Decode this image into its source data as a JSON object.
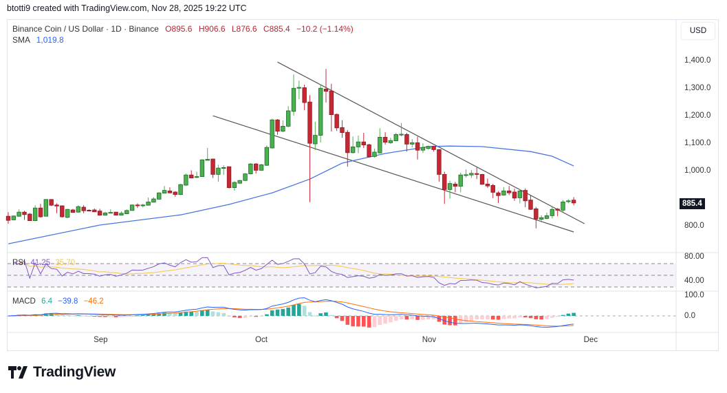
{
  "credit": "btotti9 created with TradingView.com, Nov 28, 2025 19:22 UTC",
  "legend": {
    "symbol": "Binance Coin / US Dollar · 1D · Binance",
    "open": "O895.6",
    "high": "H906.6",
    "low": "L876.6",
    "close": "C885.4",
    "change": "−10.2 (−1.14%)",
    "sma_label": "SMA",
    "sma_value": "1,019.8"
  },
  "currency_button": "USD",
  "price_axis": [
    "1,400.0",
    "1,300.0",
    "1,200.0",
    "1,100.0",
    "1,000.0",
    "800.0"
  ],
  "last_price": "885.4",
  "rsi": {
    "label": "RSI",
    "value": "41.25",
    "ma_value": "35.70",
    "axis": [
      "80.00",
      "40.00"
    ],
    "levels": [
      70,
      50,
      30
    ]
  },
  "macd": {
    "label": "MACD",
    "hist": "6.4",
    "macd": "−39.8",
    "signal": "−46.2",
    "axis": [
      "100.0",
      "0.0"
    ]
  },
  "time_axis": [
    "Sep",
    "Oct",
    "Nov",
    "Dec"
  ],
  "brand": "TradingView",
  "colors": {
    "up": "#4caf50",
    "up_border": "#1e6b2a",
    "down": "#c62833",
    "down_border": "#8e1a22",
    "sma": "#4a74e0",
    "rsi": "#7e57c2",
    "rsi_ma": "#f5c842",
    "macd": "#2962ff",
    "signal": "#ff6d00",
    "hist_up": "#26a69a",
    "hist_up_light": "#b2dfdb",
    "hist_dn": "#ff5252",
    "hist_dn_light": "#ffcdd2",
    "trendline": "#555555"
  },
  "chart_data": {
    "type": "candlestick",
    "interval": "1D",
    "date_range": [
      "2025-08-15",
      "2025-11-28"
    ],
    "ohlc": [
      [
        837,
        852,
        810,
        822
      ],
      [
        824,
        840,
        822,
        838
      ],
      [
        837,
        862,
        835,
        852
      ],
      [
        852,
        857,
        824,
        843
      ],
      [
        845,
        849,
        820,
        821
      ],
      [
        821,
        877,
        819,
        867
      ],
      [
        867,
        882,
        832,
        835
      ],
      [
        837,
        898,
        836,
        898
      ],
      [
        898,
        898,
        874,
        877
      ],
      [
        878,
        884,
        848,
        874
      ],
      [
        875,
        876,
        832,
        835
      ],
      [
        833,
        864,
        830,
        862
      ],
      [
        860,
        864,
        850,
        851
      ],
      [
        852,
        877,
        850,
        872
      ],
      [
        870,
        877,
        848,
        857
      ],
      [
        859,
        862,
        855,
        857
      ],
      [
        860,
        865,
        852,
        853
      ],
      [
        856,
        864,
        839,
        841
      ],
      [
        841,
        853,
        839,
        849
      ],
      [
        849,
        862,
        848,
        851
      ],
      [
        852,
        853,
        840,
        841
      ],
      [
        841,
        855,
        840,
        848
      ],
      [
        846,
        862,
        845,
        858
      ],
      [
        858,
        880,
        857,
        878
      ],
      [
        878,
        884,
        867,
        877
      ],
      [
        876,
        882,
        869,
        878
      ],
      [
        877,
        905,
        876,
        889
      ],
      [
        888,
        906,
        887,
        900
      ],
      [
        899,
        924,
        897,
        922
      ],
      [
        921,
        947,
        920,
        931
      ],
      [
        929,
        942,
        920,
        922
      ],
      [
        925,
        928,
        908,
        916
      ],
      [
        916,
        955,
        914,
        952
      ],
      [
        950,
        992,
        947,
        987
      ],
      [
        987,
        1004,
        975,
        976
      ],
      [
        978,
        999,
        975,
        981
      ],
      [
        981,
        1044,
        980,
        1042
      ],
      [
        1040,
        1085,
        1040,
        1044
      ],
      [
        1045,
        1046,
        976,
        989
      ],
      [
        989,
        1024,
        962,
        1012
      ],
      [
        1012,
        1022,
        987,
        1014
      ],
      [
        1017,
        1018,
        938,
        941
      ],
      [
        941,
        964,
        930,
        960
      ],
      [
        957,
        969,
        955,
        967
      ],
      [
        967,
        993,
        965,
        991
      ],
      [
        991,
        1030,
        989,
        1027
      ],
      [
        1027,
        1030,
        992,
        1004
      ],
      [
        1004,
        1027,
        1002,
        1024
      ],
      [
        1022,
        1094,
        1020,
        1087
      ],
      [
        1085,
        1191,
        1083,
        1187
      ],
      [
        1187,
        1190,
        1133,
        1146
      ],
      [
        1146,
        1185,
        1142,
        1164
      ],
      [
        1164,
        1237,
        1160,
        1220
      ],
      [
        1218,
        1352,
        1202,
        1302
      ],
      [
        1303,
        1330,
        1262,
        1305
      ],
      [
        1304,
        1315,
        1222,
        1250
      ],
      [
        1252,
        1277,
        888,
        1102
      ],
      [
        1100,
        1180,
        1077,
        1131
      ],
      [
        1131,
        1315,
        1105,
        1302
      ],
      [
        1299,
        1372,
        1250,
        1291
      ],
      [
        1292,
        1318,
        1145,
        1206
      ],
      [
        1207,
        1210,
        1147,
        1158
      ],
      [
        1159,
        1186,
        1122,
        1141
      ],
      [
        1142,
        1150,
        1017,
        1068
      ],
      [
        1068,
        1127,
        1065,
        1089
      ],
      [
        1089,
        1130,
        1066,
        1107
      ],
      [
        1107,
        1140,
        1085,
        1096
      ],
      [
        1097,
        1100,
        1050,
        1053
      ],
      [
        1054,
        1083,
        1050,
        1070
      ],
      [
        1067,
        1157,
        1065,
        1124
      ],
      [
        1124,
        1142,
        1097,
        1106
      ],
      [
        1104,
        1122,
        1100,
        1112
      ],
      [
        1111,
        1140,
        1110,
        1134
      ],
      [
        1133,
        1176,
        1127,
        1135
      ],
      [
        1134,
        1140,
        1072,
        1099
      ],
      [
        1099,
        1117,
        1087,
        1104
      ],
      [
        1104,
        1126,
        1043,
        1077
      ],
      [
        1077,
        1102,
        1067,
        1087
      ],
      [
        1083,
        1093,
        1080,
        1091
      ],
      [
        1091,
        1093,
        1072,
        1079
      ],
      [
        1079,
        1081,
        963,
        989
      ],
      [
        989,
        999,
        882,
        934
      ],
      [
        934,
        966,
        901,
        956
      ],
      [
        954,
        962,
        924,
        946
      ],
      [
        946,
        995,
        924,
        987
      ],
      [
        986,
        1007,
        978,
        988
      ],
      [
        987,
        1005,
        976,
        993
      ],
      [
        992,
        1014,
        972,
        989
      ],
      [
        989,
        991,
        951,
        953
      ],
      [
        954,
        974,
        940,
        947
      ],
      [
        949,
        955,
        903,
        924
      ],
      [
        922,
        928,
        885,
        912
      ],
      [
        914,
        943,
        912,
        929
      ],
      [
        929,
        947,
        914,
        922
      ],
      [
        925,
        937,
        893,
        903
      ],
      [
        904,
        935,
        884,
        929
      ],
      [
        931,
        938,
        870,
        893
      ],
      [
        896,
        914,
        860,
        862
      ],
      [
        864,
        871,
        793,
        827
      ],
      [
        826,
        840,
        815,
        832
      ],
      [
        829,
        850,
        826,
        839
      ],
      [
        839,
        872,
        829,
        862
      ],
      [
        863,
        867,
        837,
        859
      ],
      [
        859,
        896,
        852,
        889
      ],
      [
        891,
        899,
        884,
        893
      ],
      [
        895.6,
        906.6,
        876.6,
        885.4
      ]
    ],
    "sma": [
      [
        "2025-08-15",
        737
      ],
      [
        "2025-09-01",
        805
      ],
      [
        "2025-09-16",
        842
      ],
      [
        "2025-09-25",
        880
      ],
      [
        "2025-10-03",
        922
      ],
      [
        "2025-10-10",
        972
      ],
      [
        "2025-10-16",
        1030
      ],
      [
        "2025-10-24",
        1065
      ],
      [
        "2025-11-01",
        1090
      ],
      [
        "2025-11-05",
        1092
      ],
      [
        "2025-11-11",
        1090
      ],
      [
        "2025-11-20",
        1072
      ],
      [
        "2025-11-24",
        1055
      ],
      [
        "2025-11-28",
        1019.8
      ]
    ],
    "trendlines": [
      {
        "from": [
          "2025-10-04",
          1397
        ],
        "to": [
          "2025-11-30",
          810
        ]
      },
      {
        "from": [
          "2025-09-22",
          1202
        ],
        "to": [
          "2025-11-28",
          780
        ]
      }
    ],
    "price_range": [
      760,
      1450
    ],
    "rsi_range": [
      20,
      90
    ],
    "macd_range": [
      -80,
      110
    ]
  }
}
